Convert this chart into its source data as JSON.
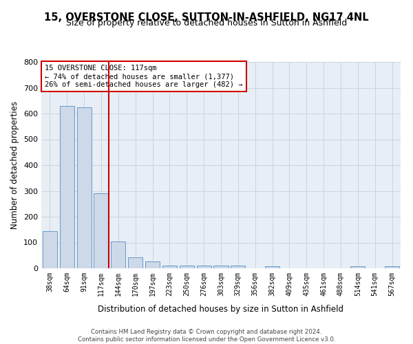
{
  "title1": "15, OVERSTONE CLOSE, SUTTON-IN-ASHFIELD, NG17 4NL",
  "title2": "Size of property relative to detached houses in Sutton in Ashfield",
  "xlabel": "Distribution of detached houses by size in Sutton in Ashfield",
  "ylabel": "Number of detached properties",
  "footnote": "Contains HM Land Registry data © Crown copyright and database right 2024.\nContains public sector information licensed under the Open Government Licence v3.0.",
  "annotation_title": "15 OVERSTONE CLOSE: 117sqm",
  "annotation_line1": "← 74% of detached houses are smaller (1,377)",
  "annotation_line2": "26% of semi-detached houses are larger (482) →",
  "categories": [
    "38sqm",
    "64sqm",
    "91sqm",
    "117sqm",
    "144sqm",
    "170sqm",
    "197sqm",
    "223sqm",
    "250sqm",
    "276sqm",
    "303sqm",
    "329sqm",
    "356sqm",
    "382sqm",
    "409sqm",
    "435sqm",
    "461sqm",
    "488sqm",
    "514sqm",
    "541sqm",
    "567sqm"
  ],
  "values": [
    145,
    630,
    625,
    290,
    103,
    42,
    28,
    12,
    12,
    12,
    10,
    10,
    0,
    8,
    0,
    0,
    0,
    0,
    8,
    0,
    8
  ],
  "bar_color": "#cdd9e8",
  "bar_edge_color": "#6699cc",
  "line_color": "#cc0000",
  "grid_color": "#c8d4e0",
  "bg_color": "#e8eef5",
  "marker_idx": 3,
  "ylim": [
    0,
    800
  ],
  "yticks": [
    0,
    100,
    200,
    300,
    400,
    500,
    600,
    700,
    800
  ],
  "title1_fontsize": 10.5,
  "title2_fontsize": 9,
  "xlabel_fontsize": 8.5,
  "ylabel_fontsize": 8.5,
  "footnote_fontsize": 6.2
}
